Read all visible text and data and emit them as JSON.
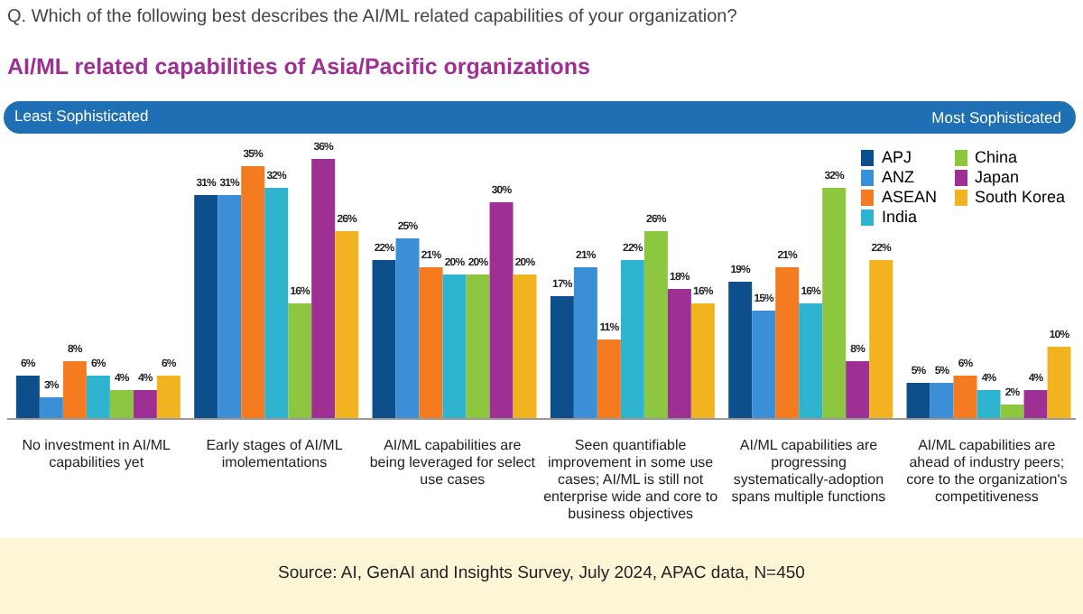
{
  "chart_data": {
    "type": "bar",
    "subtitle": "Q. Which of the following best describes the AI/ML related capabilities of your organization?",
    "title": "AI/ML related capabilities of Asia/Pacific organizations",
    "annotations": [
      "Least Sophisticated",
      "Most Sophisticated",
      "Source: AI, GenAI and Insights Survey, July 2024, APAC data, N=450"
    ],
    "categories": [
      "No investment in AI/ML capabilities yet",
      "Early stages of AI/ML imolementations",
      "AI/ML capabilities are being leveraged for select use cases",
      "Seen quantifiable improvement in some use cases; AI/ML is still not enterprise wide and core to business objectives",
      "AI/ML capabilities are progressing systematically-adoption spans multiple functions",
      "AI/ML capabilities are ahead of industry peers; core to the organization's competitiveness"
    ],
    "series": [
      {
        "name": "APJ",
        "color": "#0d4f8b",
        "values": [
          6,
          31,
          22,
          17,
          19,
          5
        ],
        "value_labels": [
          "6%",
          "31%",
          "22%",
          "17%",
          "19%",
          "5%"
        ]
      },
      {
        "name": "ANZ",
        "color": "#3a8fd6",
        "values": [
          3,
          31,
          25,
          21,
          15,
          5
        ],
        "value_labels": [
          "3%",
          "31%",
          "25%",
          "21%",
          "15%",
          "5%"
        ]
      },
      {
        "name": "ASEAN",
        "color": "#f47b20",
        "values": [
          8,
          35,
          21,
          11,
          21,
          6
        ],
        "value_labels": [
          "8%",
          "35%",
          "21%",
          "11%",
          "21%",
          "6%"
        ]
      },
      {
        "name": "India",
        "color": "#2eb4cf",
        "values": [
          6,
          32,
          20,
          22,
          16,
          4
        ],
        "value_labels": [
          "6%",
          "32%",
          "20%",
          "22%",
          "16%",
          "4%"
        ]
      },
      {
        "name": "China",
        "color": "#8dc63f",
        "values": [
          4,
          16,
          20,
          26,
          32,
          2
        ],
        "value_labels": [
          "4%",
          "16%",
          "20%",
          "26%",
          "32%",
          "2%"
        ]
      },
      {
        "name": "Japan",
        "color": "#9e2f93",
        "values": [
          4,
          36,
          30,
          18,
          8,
          4
        ],
        "value_labels": [
          "4%",
          "36%",
          "30%",
          "18%",
          "8%",
          "4%"
        ]
      },
      {
        "name": "South Korea",
        "color": "#f2b320",
        "values": [
          6,
          26,
          20,
          16,
          22,
          10
        ],
        "value_labels": [
          "6%",
          "26%",
          "20%",
          "16%",
          "22%",
          "10%"
        ]
      }
    ],
    "legend": "top right",
    "grid": false
  }
}
